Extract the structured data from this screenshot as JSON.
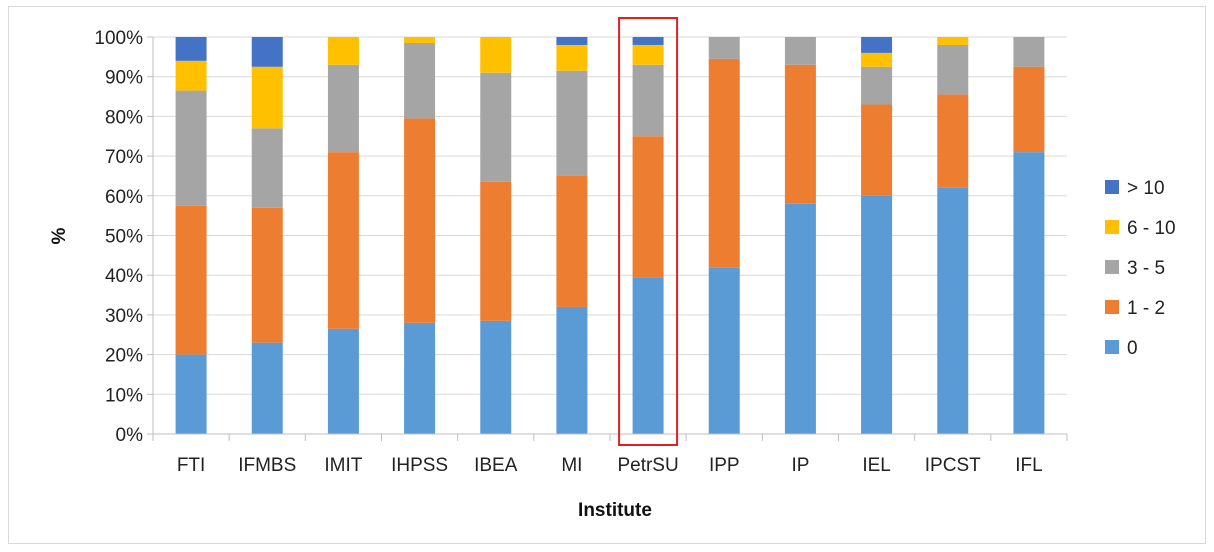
{
  "chart_data": {
    "type": "bar",
    "stacked": true,
    "percent": true,
    "categories": [
      "FTI",
      "IFMBS",
      "IMIT",
      "IHPSS",
      "IBEA",
      "MI",
      "PetrSU",
      "IPP",
      "IP",
      "IEL",
      "IPCST",
      "IFL"
    ],
    "series": [
      {
        "name": "0",
        "color": "#5b9bd5",
        "values": [
          20,
          23,
          26.5,
          28,
          28.5,
          32,
          39.5,
          42,
          58,
          60,
          62,
          71
        ]
      },
      {
        "name": "1 - 2",
        "color": "#ed7d31",
        "values": [
          37.5,
          34,
          44.5,
          51.5,
          35,
          33,
          35.5,
          52.5,
          35,
          23,
          23.5,
          21.5
        ]
      },
      {
        "name": "3 - 5",
        "color": "#a5a5a5",
        "values": [
          29,
          20,
          22,
          19,
          27.5,
          26.5,
          18,
          5.5,
          7,
          9.5,
          12.5,
          7.5
        ]
      },
      {
        "name": "6 - 10",
        "color": "#ffc000",
        "values": [
          7.5,
          15.5,
          7,
          1.5,
          9,
          6.5,
          5,
          0,
          0,
          3.5,
          2,
          0
        ]
      },
      {
        "name": "> 10",
        "color": "#4472c4",
        "values": [
          6,
          7.5,
          0,
          0,
          0,
          2,
          2,
          0,
          0,
          4,
          0,
          0
        ]
      }
    ],
    "ylabel": "%",
    "xlabel": "Institute",
    "ylim": [
      0,
      100
    ],
    "yticks": [
      "0%",
      "10%",
      "20%",
      "30%",
      "40%",
      "50%",
      "60%",
      "70%",
      "80%",
      "90%",
      "100%"
    ],
    "grid": true,
    "legend_position": "right",
    "highlighted_category": "PetrSU",
    "highlight_color": "#e0201f"
  }
}
